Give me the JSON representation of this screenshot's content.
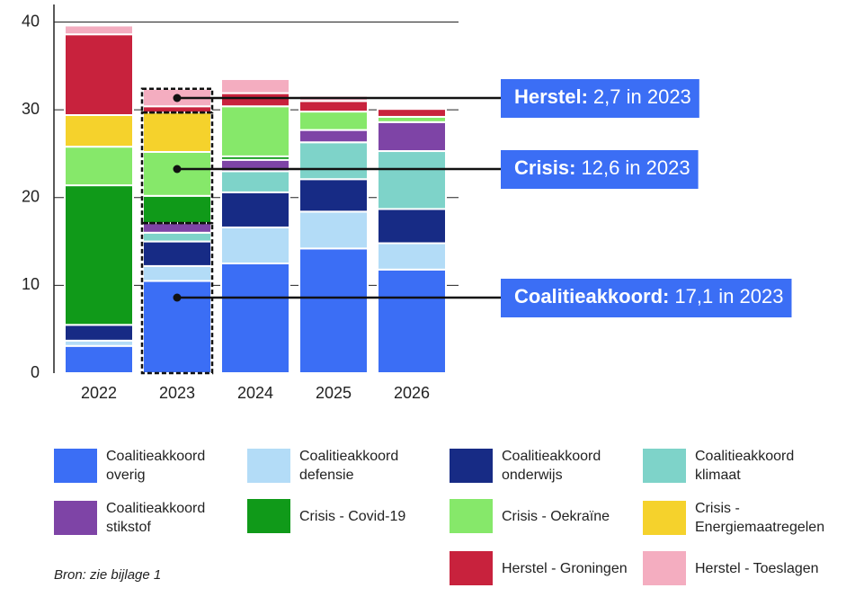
{
  "chart_data": {
    "type": "stacked-bar",
    "categories": [
      "2022",
      "2023",
      "2024",
      "2025",
      "2026"
    ],
    "series": [
      {
        "name": "Coalitieakkoord overig",
        "color": "#3b6ef5",
        "values": [
          3.1,
          10.5,
          12.5,
          14.2,
          11.8
        ]
      },
      {
        "name": "Coalitieakkoord defensie",
        "color": "#b3dcf7",
        "values": [
          0.6,
          1.7,
          4.1,
          4.2,
          3.0
        ]
      },
      {
        "name": "Coalitieakkoord onderwijs",
        "color": "#172b85",
        "values": [
          1.8,
          2.8,
          4.0,
          3.7,
          3.9
        ]
      },
      {
        "name": "Coalitieakkoord klimaat",
        "color": "#7ed3c9",
        "values": [
          0,
          1.0,
          2.4,
          4.2,
          6.6
        ]
      },
      {
        "name": "Coalitieakkoord stikstof",
        "color": "#7e44a6",
        "values": [
          0,
          1.1,
          1.3,
          1.4,
          3.3
        ]
      },
      {
        "name": "Crisis - Covid-19",
        "color": "#109a19",
        "values": [
          15.9,
          3.1,
          0.4,
          0,
          0
        ]
      },
      {
        "name": "Crisis - Oekraïne",
        "color": "#86e86a",
        "values": [
          4.4,
          5.0,
          5.7,
          2.1,
          0.6
        ]
      },
      {
        "name": "Crisis - Energiemaatregelen",
        "color": "#f5d22c",
        "values": [
          3.6,
          4.5,
          0,
          0,
          0
        ]
      },
      {
        "name": "Herstel - Groningen",
        "color": "#c8223d",
        "values": [
          9.2,
          0.7,
          1.5,
          1.2,
          0.9
        ]
      },
      {
        "name": "Herstel - Toeslagen",
        "color": "#f4adc0",
        "values": [
          1.0,
          2.0,
          1.6,
          0.6,
          0
        ]
      }
    ],
    "ylim": [
      0,
      42
    ],
    "yticks": [
      0,
      10,
      20,
      30,
      40
    ],
    "grid": true,
    "annotations": [
      {
        "label": "Herstel:",
        "text": "2,7 in 2023"
      },
      {
        "label": "Crisis:",
        "text": "12,6 in 2023"
      },
      {
        "label": "Coalitieakkoord:",
        "text": "17,1 in 2023"
      }
    ],
    "source": "Bron: zie bijlage 1"
  }
}
